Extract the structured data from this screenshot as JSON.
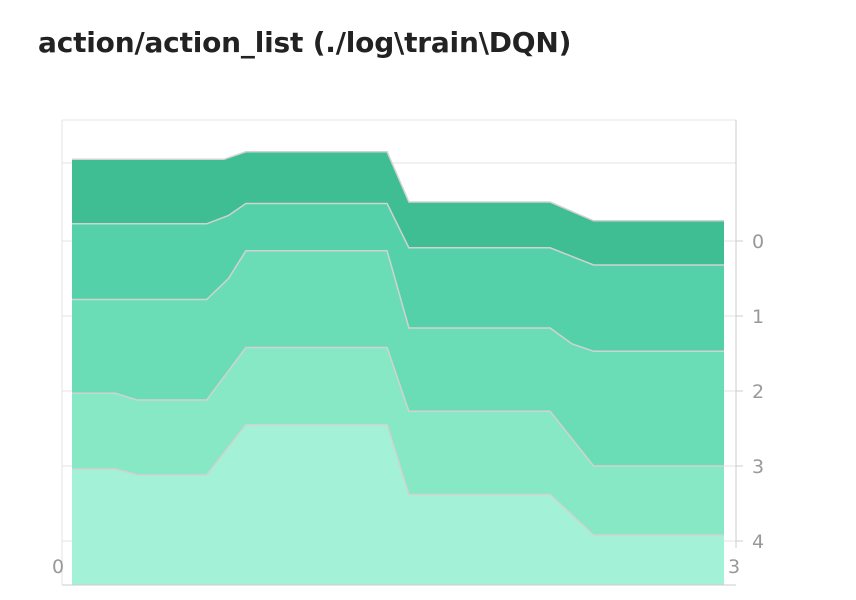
{
  "title": "action/action_list (./log\\train\\DQN)",
  "chart_data": {
    "type": "area",
    "title": "action/action_list (./log\\train\\DQN)",
    "x_tick_labels": [
      "0",
      "3"
    ],
    "y_tick_labels": [
      "0",
      "1",
      "2",
      "3",
      "4"
    ],
    "x_range": [
      0,
      3
    ],
    "grid": true,
    "ridgelines": [
      {
        "name": "0",
        "color": "#3ebe92",
        "x": [
          0,
          0.7,
          0.8,
          1.45,
          1.55,
          2.2,
          2.4,
          3.0
        ],
        "y": [
          1.09,
          1.09,
          1.19,
          1.19,
          0.52,
          0.52,
          0.27,
          0.27
        ]
      },
      {
        "name": "1",
        "color": "#55d1aa",
        "x": [
          0,
          0.62,
          0.72,
          0.8,
          1.45,
          1.55,
          2.2,
          2.4,
          3.0
        ],
        "y": [
          1.23,
          1.23,
          1.34,
          1.5,
          1.5,
          0.91,
          0.91,
          0.68,
          0.68
        ]
      },
      {
        "name": "2",
        "color": "#6adcb6",
        "x": [
          0,
          0.62,
          0.72,
          0.8,
          1.45,
          1.55,
          2.2,
          2.3,
          2.4,
          3.0
        ],
        "y": [
          1.22,
          1.22,
          1.5,
          1.87,
          1.87,
          0.84,
          0.84,
          0.63,
          0.53,
          0.53
        ]
      },
      {
        "name": "3",
        "color": "#86e8c5",
        "x": [
          0,
          0.2,
          0.3,
          0.62,
          0.8,
          1.45,
          1.55,
          2.2,
          2.4,
          3.0
        ],
        "y": [
          0.97,
          0.97,
          0.88,
          0.88,
          1.58,
          1.58,
          0.73,
          0.73,
          0.0,
          0.0
        ]
      },
      {
        "name": "4",
        "color": "#a3f2d8",
        "x": [
          0,
          0.2,
          0.3,
          0.62,
          0.8,
          1.45,
          1.55,
          2.2,
          2.4,
          3.0
        ],
        "y": [
          0.96,
          0.96,
          0.88,
          0.88,
          1.55,
          1.55,
          0.62,
          0.62,
          0.08,
          0.08
        ]
      }
    ]
  }
}
